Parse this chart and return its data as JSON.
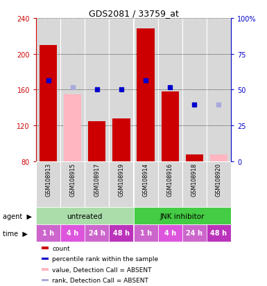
{
  "title": "GDS2081 / 33759_at",
  "samples": [
    "GSM108913",
    "GSM108915",
    "GSM108917",
    "GSM108919",
    "GSM108914",
    "GSM108916",
    "GSM108918",
    "GSM108920"
  ],
  "bar_values": [
    210,
    null,
    125,
    128,
    228,
    158,
    88,
    null
  ],
  "absent_bar_values": [
    null,
    155,
    null,
    null,
    null,
    null,
    null,
    88
  ],
  "blue_dot_values": [
    170,
    null,
    160,
    160,
    170,
    163,
    143,
    null
  ],
  "blue_dot_absent": [
    null,
    163,
    null,
    null,
    null,
    null,
    null,
    143
  ],
  "ylim_left": [
    80,
    240
  ],
  "yticks_left": [
    80,
    120,
    160,
    200,
    240
  ],
  "ytick_labels_left": [
    "80",
    "120",
    "160",
    "200",
    "240"
  ],
  "ytick_labels_right": [
    "0",
    "25",
    "50",
    "75",
    "100%"
  ],
  "left_axis_color": "#cc0000",
  "right_axis_color": "#0000cc",
  "agent_untreated": "untreated",
  "agent_jnk": "JNK inhibitor",
  "time_labels": [
    "1 h",
    "4 h",
    "24 h",
    "48 h",
    "1 h",
    "4 h",
    "24 h",
    "48 h"
  ],
  "agent_color_untreated": "#aaddaa",
  "agent_color_jnk": "#44cc44",
  "time_colors": [
    "#cc66cc",
    "#cc44cc",
    "#cc66cc",
    "#cc22cc",
    "#cc66cc",
    "#cc44cc",
    "#cc66cc",
    "#cc22cc"
  ],
  "plot_bg": "#d8d8d8",
  "bar_color": "#cc0000",
  "absent_bar_color": "#ffb6c1",
  "dot_color": "#0000cc",
  "dot_absent_color": "#aaaadd",
  "legend_items": [
    {
      "label": "count",
      "color": "#cc0000"
    },
    {
      "label": "percentile rank within the sample",
      "color": "#0000cc"
    },
    {
      "label": "value, Detection Call = ABSENT",
      "color": "#ffb6c1"
    },
    {
      "label": "rank, Detection Call = ABSENT",
      "color": "#aaaadd"
    }
  ]
}
